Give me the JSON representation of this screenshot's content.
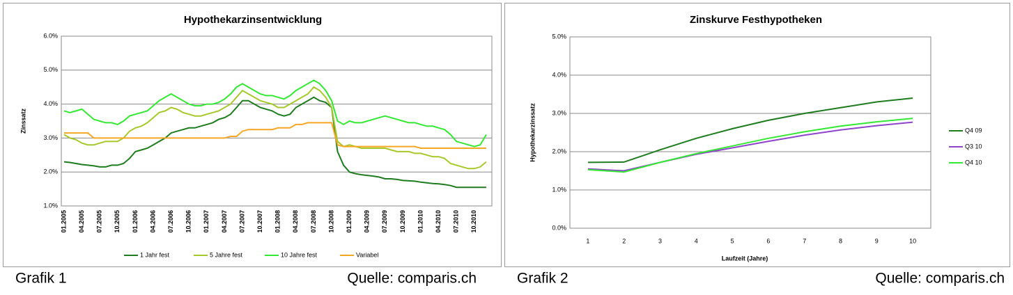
{
  "chart_data": [
    {
      "type": "line",
      "title": "Hypothekarzinsentwicklung",
      "y_label": "Zinssatz",
      "caption": "Grafik 1",
      "source": "Quelle: comparis.ch",
      "legend": "bottom",
      "grid": true,
      "ylim": [
        1,
        6
      ],
      "yticks": [
        {
          "value": 1,
          "label": "1.0%"
        },
        {
          "value": 2,
          "label": "2.0%"
        },
        {
          "value": 3,
          "label": "3.0%"
        },
        {
          "value": 4,
          "label": "4.0%"
        },
        {
          "value": 5,
          "label": "5.0%"
        },
        {
          "value": 6,
          "label": "6.0%"
        }
      ],
      "categories": [
        "01.2005",
        null,
        null,
        "04.2005",
        null,
        null,
        "07.2005",
        null,
        null,
        "10.2005",
        null,
        null,
        "01.2006",
        null,
        null,
        "04.2006",
        null,
        null,
        "07.2006",
        null,
        null,
        "10.2006",
        null,
        null,
        "01.2007",
        null,
        null,
        "04.2007",
        null,
        null,
        "07.2007",
        null,
        null,
        "10.2007",
        null,
        null,
        "01.2008",
        null,
        null,
        "04.2008",
        null,
        null,
        "07.2008",
        null,
        null,
        "10.2008",
        null,
        null,
        "01.2009",
        null,
        null,
        "04.2009",
        null,
        null,
        "07.2009",
        null,
        null,
        "10.2009",
        null,
        null,
        "01.2010",
        null,
        null,
        "04.2010",
        null,
        null,
        "07.2010",
        null,
        null,
        "10.2010",
        null,
        null
      ],
      "series": [
        {
          "name": "1 Jahr fest",
          "color": "#1e7b1e",
          "values": [
            2.3,
            2.28,
            2.25,
            2.22,
            2.2,
            2.18,
            2.15,
            2.15,
            2.2,
            2.2,
            2.25,
            2.4,
            2.6,
            2.65,
            2.7,
            2.8,
            2.9,
            3.0,
            3.15,
            3.2,
            3.25,
            3.3,
            3.3,
            3.35,
            3.4,
            3.45,
            3.55,
            3.6,
            3.7,
            3.9,
            4.1,
            4.1,
            4.0,
            3.9,
            3.85,
            3.8,
            3.7,
            3.65,
            3.7,
            3.9,
            4.0,
            4.1,
            4.2,
            4.1,
            4.05,
            3.9,
            2.6,
            2.2,
            2.0,
            1.95,
            1.92,
            1.9,
            1.88,
            1.85,
            1.8,
            1.8,
            1.78,
            1.75,
            1.74,
            1.73,
            1.7,
            1.68,
            1.66,
            1.65,
            1.63,
            1.6,
            1.55,
            1.55,
            1.55,
            1.55,
            1.55,
            1.55
          ]
        },
        {
          "name": "5 Jahre fest",
          "color": "#a6c82a",
          "values": [
            3.1,
            3.0,
            2.95,
            2.85,
            2.8,
            2.8,
            2.85,
            2.9,
            2.9,
            2.9,
            3.0,
            3.2,
            3.3,
            3.35,
            3.45,
            3.6,
            3.75,
            3.8,
            3.9,
            3.85,
            3.75,
            3.7,
            3.65,
            3.65,
            3.7,
            3.75,
            3.8,
            3.9,
            4.0,
            4.2,
            4.4,
            4.3,
            4.2,
            4.1,
            4.05,
            4.0,
            3.9,
            3.9,
            4.0,
            4.1,
            4.2,
            4.3,
            4.5,
            4.4,
            4.2,
            3.9,
            2.9,
            2.75,
            2.8,
            2.75,
            2.7,
            2.7,
            2.7,
            2.7,
            2.7,
            2.65,
            2.6,
            2.6,
            2.6,
            2.55,
            2.55,
            2.5,
            2.45,
            2.45,
            2.4,
            2.25,
            2.2,
            2.15,
            2.1,
            2.1,
            2.15,
            2.3
          ]
        },
        {
          "name": "10 Jahre fest",
          "color": "#33e833",
          "values": [
            3.8,
            3.75,
            3.8,
            3.85,
            3.7,
            3.55,
            3.5,
            3.45,
            3.45,
            3.4,
            3.5,
            3.65,
            3.7,
            3.75,
            3.8,
            3.95,
            4.1,
            4.2,
            4.3,
            4.2,
            4.1,
            4.0,
            3.95,
            3.95,
            4.0,
            4.0,
            4.05,
            4.15,
            4.3,
            4.5,
            4.6,
            4.5,
            4.4,
            4.3,
            4.25,
            4.25,
            4.2,
            4.15,
            4.25,
            4.4,
            4.5,
            4.6,
            4.7,
            4.6,
            4.4,
            4.1,
            3.5,
            3.4,
            3.5,
            3.45,
            3.45,
            3.5,
            3.55,
            3.6,
            3.65,
            3.6,
            3.55,
            3.5,
            3.45,
            3.45,
            3.4,
            3.35,
            3.35,
            3.3,
            3.25,
            3.1,
            2.9,
            2.85,
            2.8,
            2.75,
            2.8,
            3.1
          ]
        },
        {
          "name": "Variabel",
          "color": "#f5a623",
          "values": [
            3.15,
            3.15,
            3.15,
            3.15,
            3.15,
            3.0,
            3.0,
            3.0,
            3.0,
            3.0,
            3.0,
            3.0,
            3.0,
            3.0,
            3.0,
            3.0,
            3.0,
            3.0,
            3.0,
            3.0,
            3.0,
            3.0,
            3.0,
            3.0,
            3.0,
            3.0,
            3.0,
            3.0,
            3.05,
            3.05,
            3.2,
            3.25,
            3.25,
            3.25,
            3.25,
            3.25,
            3.3,
            3.3,
            3.3,
            3.4,
            3.4,
            3.45,
            3.45,
            3.45,
            3.45,
            3.45,
            2.8,
            2.75,
            2.75,
            2.75,
            2.75,
            2.75,
            2.75,
            2.75,
            2.75,
            2.75,
            2.75,
            2.75,
            2.75,
            2.75,
            2.7,
            2.7,
            2.7,
            2.7,
            2.7,
            2.7,
            2.7,
            2.7,
            2.7,
            2.7,
            2.7,
            2.7
          ]
        }
      ]
    },
    {
      "type": "line",
      "title": "Zinskurve Festhypotheken",
      "y_label": "Hypothekarzinssatz",
      "x_label": "Laufzeit (Jahre)",
      "caption": "Grafik 2",
      "source": "Quelle: comparis.ch",
      "legend": "right",
      "grid": true,
      "ylim": [
        0,
        5
      ],
      "yticks": [
        {
          "value": 0,
          "label": "0.0%"
        },
        {
          "value": 1,
          "label": "1.0%"
        },
        {
          "value": 2,
          "label": "2.0%"
        },
        {
          "value": 3,
          "label": "3.0%"
        },
        {
          "value": 4,
          "label": "4.0%"
        },
        {
          "value": 5,
          "label": "5.0%"
        }
      ],
      "categories": [
        "1",
        "2",
        "3",
        "4",
        "5",
        "6",
        "7",
        "8",
        "9",
        "10"
      ],
      "series": [
        {
          "name": "Q4 09",
          "color": "#1e7b1e",
          "values": [
            1.72,
            1.73,
            2.05,
            2.35,
            2.6,
            2.82,
            3.0,
            3.15,
            3.3,
            3.4
          ]
        },
        {
          "name": "Q3 10",
          "color": "#8e44c9",
          "values": [
            1.55,
            1.5,
            1.72,
            1.93,
            2.1,
            2.27,
            2.43,
            2.57,
            2.68,
            2.77
          ]
        },
        {
          "name": "Q4 10",
          "color": "#33e833",
          "values": [
            1.53,
            1.47,
            1.72,
            1.95,
            2.15,
            2.35,
            2.52,
            2.67,
            2.78,
            2.87
          ]
        }
      ]
    }
  ]
}
